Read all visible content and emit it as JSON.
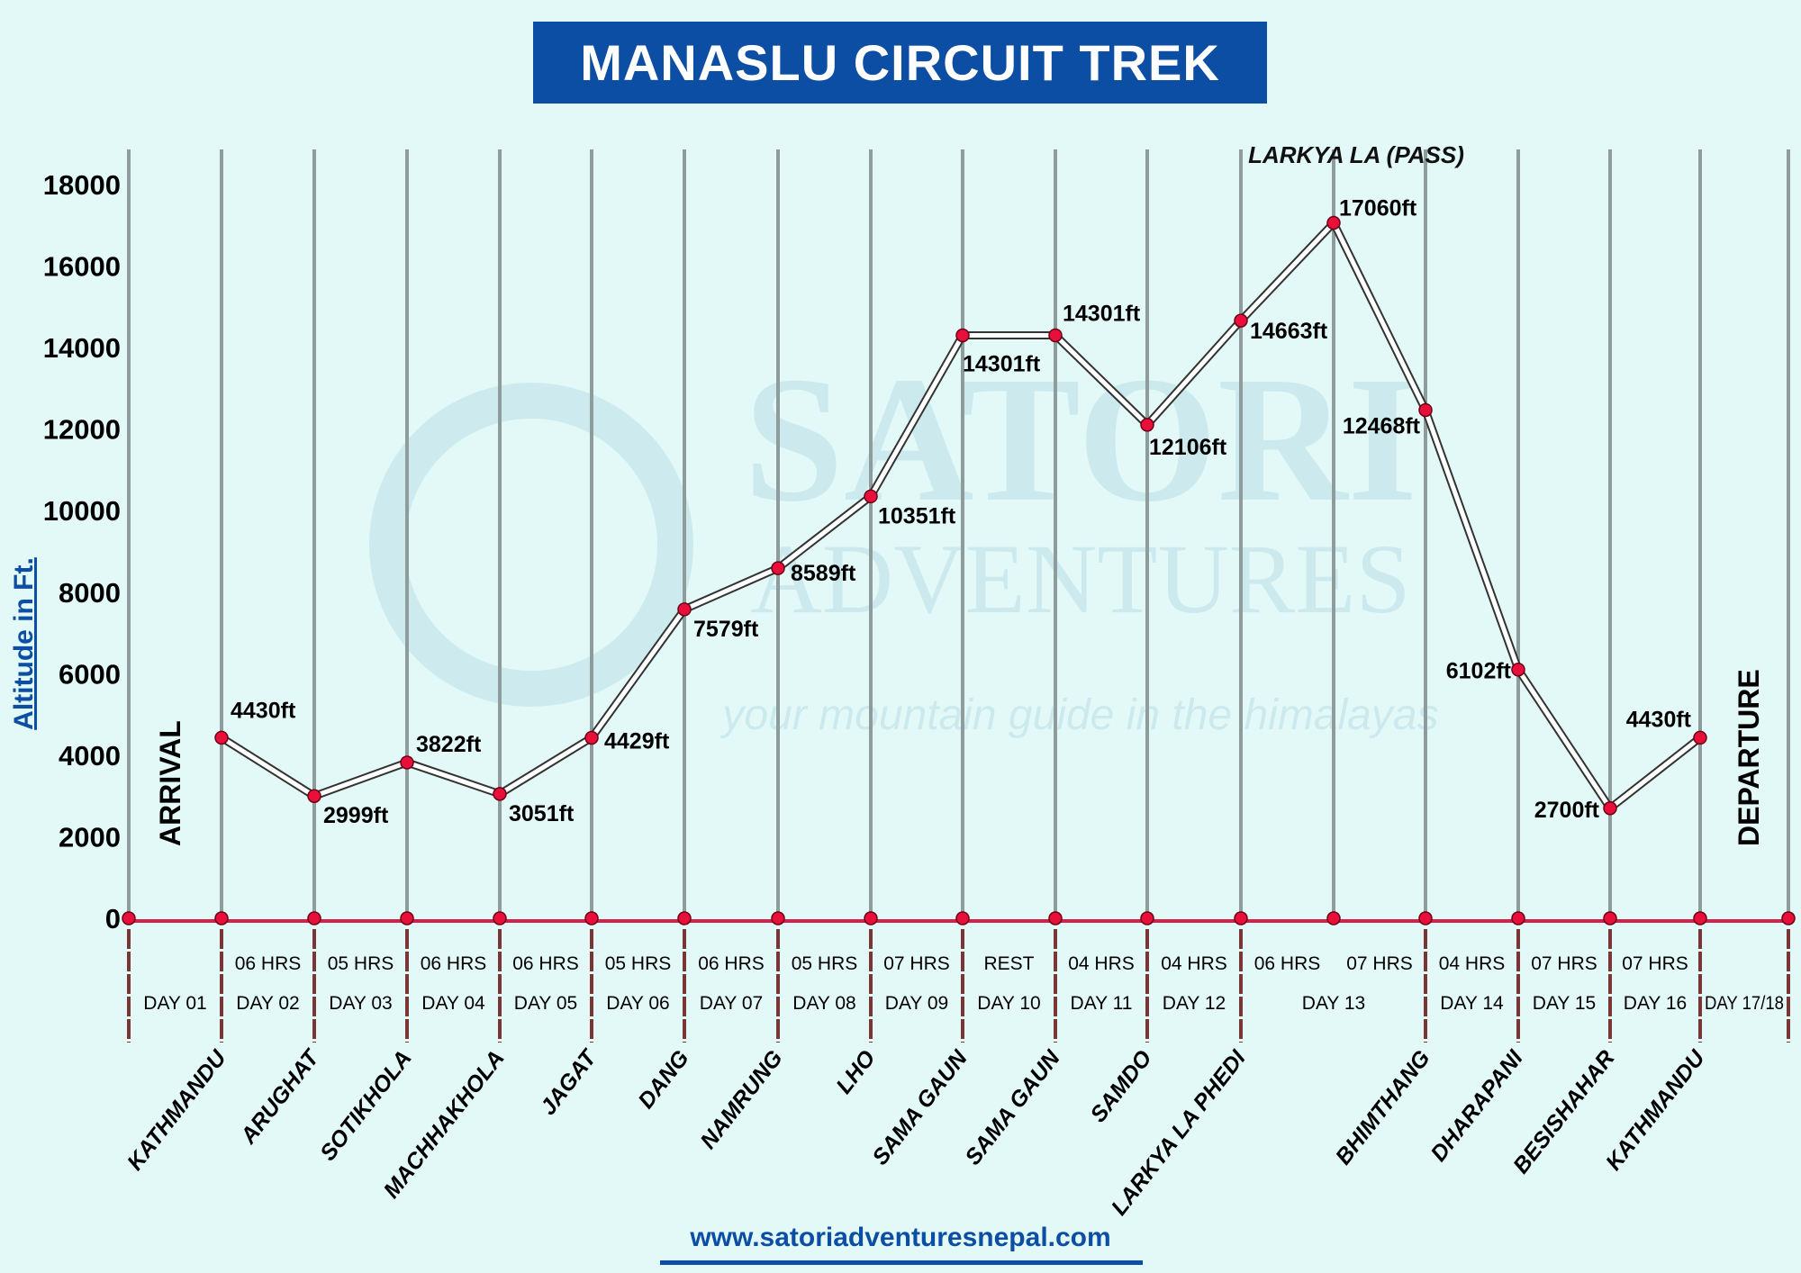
{
  "title": "MANASLU CIRCUIT TREK",
  "website": "www.satoriadventuresnepal.com",
  "watermark": {
    "brand": "SATORI",
    "subtitle": "ADVENTURES",
    "tagline": "your mountain guide in the himalayas",
    "seal": "SATORI ADVENTURES Pvt. Ltd."
  },
  "colors": {
    "title_bg": "#0c4ea3",
    "background": "#e3f9f8",
    "marker": "#e8103a",
    "baseline": "#d4204a",
    "gridline": "#8e9c9c",
    "day_divider": "#7a3535",
    "axis_label": "#0c4ea3"
  },
  "chart_data": {
    "type": "line",
    "title": "MANASLU CIRCUIT TREK",
    "ylabel": "Altitude in Ft.",
    "ylim": [
      0,
      18000
    ],
    "yticks": [
      "0",
      "2000",
      "4000",
      "6000",
      "8000",
      "10000",
      "12000",
      "14000",
      "16000",
      "18000"
    ],
    "grid": "vertical",
    "start_label": "ARRIVAL",
    "end_label": "DEPARTURE",
    "peak_annotation": "LARKYA LA (PASS)",
    "points": [
      {
        "place": "KATHMANDU",
        "altitude": 4430,
        "label": "4430ft"
      },
      {
        "place": "ARUGHAT",
        "altitude": 2999,
        "label": "2999ft"
      },
      {
        "place": "SOTIKHOLA",
        "altitude": 3822,
        "label": "3822ft"
      },
      {
        "place": "MACHHAKHOLA",
        "altitude": 3051,
        "label": "3051ft"
      },
      {
        "place": "JAGAT",
        "altitude": 4429,
        "label": "4429ft"
      },
      {
        "place": "DANG",
        "altitude": 7579,
        "label": "7579ft"
      },
      {
        "place": "NAMRUNG",
        "altitude": 8589,
        "label": "8589ft"
      },
      {
        "place": "LHO",
        "altitude": 10351,
        "label": "10351ft"
      },
      {
        "place": "SAMA GAUN",
        "altitude": 14301,
        "label": "14301ft"
      },
      {
        "place": "SAMA GAUN",
        "altitude": 14301,
        "label": "14301ft"
      },
      {
        "place": "SAMDO",
        "altitude": 12106,
        "label": "12106ft"
      },
      {
        "place": "LARKYA LA PHEDI",
        "altitude": 14663,
        "label": "14663ft"
      },
      {
        "place": "",
        "altitude": 17060,
        "label": "17060ft"
      },
      {
        "place": "BHIMTHANG",
        "altitude": 12468,
        "label": "12468ft"
      },
      {
        "place": "DHARAPANI",
        "altitude": 6102,
        "label": "6102ft"
      },
      {
        "place": "BESISHAHAR",
        "altitude": 2700,
        "label": "2700ft"
      },
      {
        "place": "KATHMANDU",
        "altitude": 4430,
        "label": "4430ft"
      }
    ],
    "hours": [
      "06 HRS",
      "05 HRS",
      "06 HRS",
      "06 HRS",
      "05 HRS",
      "06 HRS",
      "05 HRS",
      "07 HRS",
      "REST",
      "04 HRS",
      "04 HRS",
      "06 HRS",
      "07 HRS",
      "04 HRS",
      "07 HRS",
      "07 HRS"
    ],
    "days": [
      "DAY 01",
      "DAY 02",
      "DAY 03",
      "DAY 04",
      "DAY 05",
      "DAY 06",
      "DAY 07",
      "DAY 08",
      "DAY 09",
      "DAY 10",
      "DAY 11",
      "DAY 12",
      "DAY 13",
      "DAY 14",
      "DAY 15",
      "DAY 16",
      "DAY 17/18"
    ]
  }
}
